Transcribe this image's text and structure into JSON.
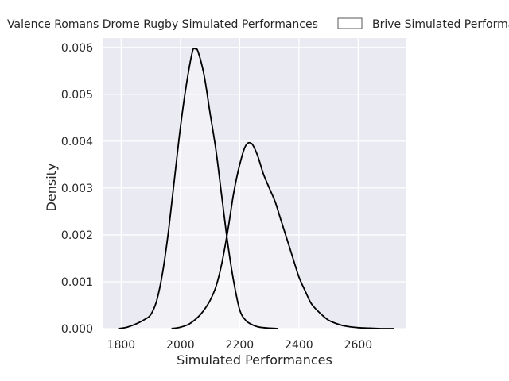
{
  "chart_data": {
    "type": "area",
    "xlabel": "Simulated Performances",
    "ylabel": "Density",
    "xlim": [
      1740,
      2760
    ],
    "ylim": [
      0,
      0.0062
    ],
    "x_ticks": [
      "1800",
      "2000",
      "2200",
      "2400",
      "2600"
    ],
    "y_ticks": [
      "0.000",
      "0.001",
      "0.002",
      "0.003",
      "0.004",
      "0.005",
      "0.006"
    ],
    "grid": true,
    "legend_placement": "top",
    "colors": {
      "background": "#eaeaf2",
      "grid": "#ffffff",
      "line": "#000000",
      "fill": "#ffffff"
    },
    "series": [
      {
        "name": "Valence Romans Drome Rugby Simulated Performances",
        "x": [
          1790,
          1820,
          1850,
          1880,
          1900,
          1920,
          1940,
          1960,
          1980,
          2000,
          2020,
          2040,
          2050,
          2060,
          2080,
          2100,
          2120,
          2140,
          2160,
          2180,
          2200,
          2220,
          2240,
          2260,
          2280,
          2300,
          2330
        ],
        "values": [
          0.0,
          3e-05,
          0.0001,
          0.0002,
          0.0003,
          0.0006,
          0.0012,
          0.0021,
          0.0032,
          0.0043,
          0.0052,
          0.0059,
          0.00597,
          0.0059,
          0.0054,
          0.0046,
          0.0038,
          0.0028,
          0.0018,
          0.001,
          0.0004,
          0.00018,
          9e-05,
          4e-05,
          2e-05,
          1e-05,
          0.0
        ]
      },
      {
        "name": "Brive Simulated Performances",
        "x": [
          1970,
          2000,
          2030,
          2060,
          2080,
          2100,
          2120,
          2140,
          2160,
          2180,
          2200,
          2220,
          2240,
          2260,
          2280,
          2300,
          2320,
          2340,
          2360,
          2380,
          2400,
          2420,
          2440,
          2460,
          2480,
          2500,
          2530,
          2560,
          2600,
          2640,
          2680,
          2720
        ],
        "values": [
          0.0,
          3e-05,
          0.0001,
          0.00025,
          0.0004,
          0.0006,
          0.0009,
          0.0014,
          0.0021,
          0.0029,
          0.0035,
          0.0039,
          0.00395,
          0.0037,
          0.0033,
          0.003,
          0.0027,
          0.0023,
          0.0019,
          0.0015,
          0.0011,
          0.00082,
          0.00055,
          0.0004,
          0.00028,
          0.00018,
          0.0001,
          5e-05,
          2e-05,
          1e-05,
          0.0,
          0.0
        ]
      }
    ]
  }
}
